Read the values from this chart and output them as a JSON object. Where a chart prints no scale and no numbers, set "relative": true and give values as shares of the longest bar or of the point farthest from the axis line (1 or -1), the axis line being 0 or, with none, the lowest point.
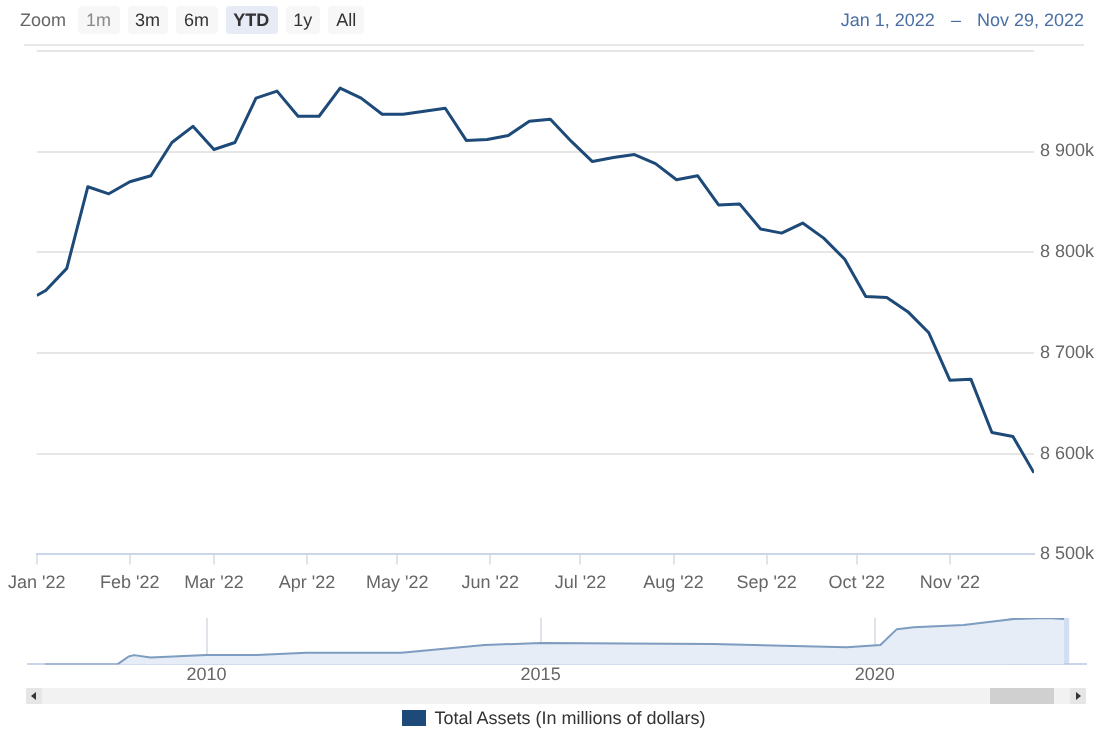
{
  "chart_data": [
    {
      "type": "line",
      "annotations": [
        "Zoom",
        "1m",
        "3m",
        "6m",
        "YTD",
        "1y",
        "All",
        "Jan 1, 2022",
        "–",
        "Nov 29, 2022"
      ],
      "x": [
        "2022-01-01",
        "2022-01-04",
        "2022-01-11",
        "2022-01-18",
        "2022-01-25",
        "2022-02-01",
        "2022-02-08",
        "2022-02-15",
        "2022-02-22",
        "2022-03-01",
        "2022-03-08",
        "2022-03-15",
        "2022-03-22",
        "2022-03-29",
        "2022-04-05",
        "2022-04-12",
        "2022-04-19",
        "2022-04-26",
        "2022-05-03",
        "2022-05-10",
        "2022-05-17",
        "2022-05-24",
        "2022-05-31",
        "2022-06-07",
        "2022-06-14",
        "2022-06-21",
        "2022-06-28",
        "2022-07-05",
        "2022-07-12",
        "2022-07-19",
        "2022-07-26",
        "2022-08-02",
        "2022-08-09",
        "2022-08-16",
        "2022-08-23",
        "2022-08-30",
        "2022-09-06",
        "2022-09-13",
        "2022-09-20",
        "2022-09-27",
        "2022-10-04",
        "2022-10-11",
        "2022-10-18",
        "2022-10-25",
        "2022-11-01",
        "2022-11-08",
        "2022-11-15",
        "2022-11-22",
        "2022-11-29"
      ],
      "series": [
        {
          "name": "Total Assets (In millions of dollars)",
          "color": "#1d4a78",
          "values": [
            8757000,
            8762000,
            8784000,
            8865000,
            8858000,
            8870000,
            8876000,
            8909000,
            8925000,
            8902000,
            8909000,
            8953000,
            8960000,
            8935000,
            8935000,
            8963000,
            8953000,
            8937000,
            8937000,
            8940000,
            8943000,
            8911000,
            8912000,
            8916000,
            8930000,
            8932000,
            8910000,
            8890000,
            8894000,
            8897000,
            8888000,
            8872000,
            8876000,
            8847000,
            8848000,
            8823000,
            8819000,
            8829000,
            8814000,
            8793000,
            8756000,
            8755000,
            8741000,
            8720000,
            8673000,
            8674000,
            8621000,
            8617000,
            8581000
          ]
        }
      ],
      "xlim": [
        "2022-01-01",
        "2022-11-29"
      ],
      "xticks": [
        {
          "value": "2022-01-01",
          "label": "Jan '22"
        },
        {
          "value": "2022-02-01",
          "label": "Feb '22"
        },
        {
          "value": "2022-03-01",
          "label": "Mar '22"
        },
        {
          "value": "2022-04-01",
          "label": "Apr '22"
        },
        {
          "value": "2022-05-01",
          "label": "May '22"
        },
        {
          "value": "2022-06-01",
          "label": "Jun '22"
        },
        {
          "value": "2022-07-01",
          "label": "Jul '22"
        },
        {
          "value": "2022-08-01",
          "label": "Aug '22"
        },
        {
          "value": "2022-09-01",
          "label": "Sep '22"
        },
        {
          "value": "2022-10-01",
          "label": "Oct '22"
        },
        {
          "value": "2022-11-01",
          "label": "Nov '22"
        }
      ],
      "ylim": [
        8500000,
        9000000
      ],
      "yticks": [
        {
          "value": 8500000,
          "label": "8 500k"
        },
        {
          "value": 8600000,
          "label": "8 600k"
        },
        {
          "value": 8700000,
          "label": "8 700k"
        },
        {
          "value": 8800000,
          "label": "8 800k"
        },
        {
          "value": 8900000,
          "label": "8 900k"
        },
        {
          "value": 9000000,
          "label": null
        }
      ],
      "grid": "y",
      "legend": "bottom",
      "marker": "none"
    },
    {
      "type": "area",
      "relative": true,
      "color": "#7d9cc0",
      "x": [
        "2007-08",
        "2008-09",
        "2008-11",
        "2008-12",
        "2009-03",
        "2010-01",
        "2010-10",
        "2011-07",
        "2012-12",
        "2014-03",
        "2015-01",
        "2017-08",
        "2019-08",
        "2020-02",
        "2020-05",
        "2020-08",
        "2021-05",
        "2022-02",
        "2022-08",
        "2022-11"
      ],
      "values": [
        0,
        0,
        0.17,
        0.2,
        0.15,
        0.2,
        0.2,
        0.25,
        0.25,
        0.42,
        0.46,
        0.44,
        0.37,
        0.42,
        0.76,
        0.8,
        0.85,
        0.98,
        1,
        0.98
      ],
      "xlim": [
        "2007-05",
        "2023-03"
      ],
      "xticks": [
        {
          "value": "2010-01-01",
          "label": "2010"
        },
        {
          "value": "2015-01-01",
          "label": "2015"
        },
        {
          "value": "2020-01-01",
          "label": "2020"
        }
      ],
      "bands": [
        {
          "axis": "x",
          "from": "2022-01-01",
          "to": "2022-11-29",
          "color": "#b7c8ea"
        }
      ],
      "grid": "x"
    }
  ]
}
